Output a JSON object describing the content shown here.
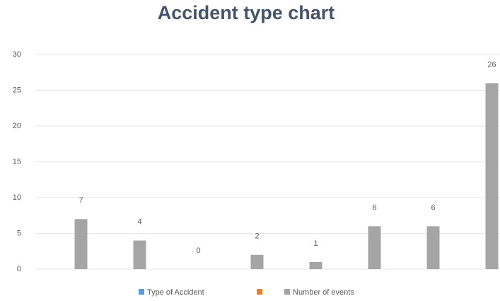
{
  "chart_data": {
    "type": "bar",
    "title": "Accident type chart",
    "categories": [
      null,
      null,
      null,
      null,
      null,
      null,
      null,
      null
    ],
    "series": [
      {
        "name": "Type of Accident",
        "color": "#5b9bd5",
        "values": [
          null,
          null,
          null,
          null,
          null,
          null,
          null,
          null
        ]
      },
      {
        "color": "#ed7d31",
        "values": [
          null,
          null,
          null,
          null,
          null,
          null,
          null,
          null
        ]
      },
      {
        "name": "Number of events",
        "color": "#a5a5a5",
        "values": [
          7,
          4,
          0,
          2,
          1,
          6,
          6,
          26
        ]
      }
    ],
    "ylim": [
      0,
      30
    ],
    "yticks": [
      0,
      5,
      10,
      15,
      20,
      25,
      30
    ],
    "grid": true,
    "legend": "bottom"
  }
}
